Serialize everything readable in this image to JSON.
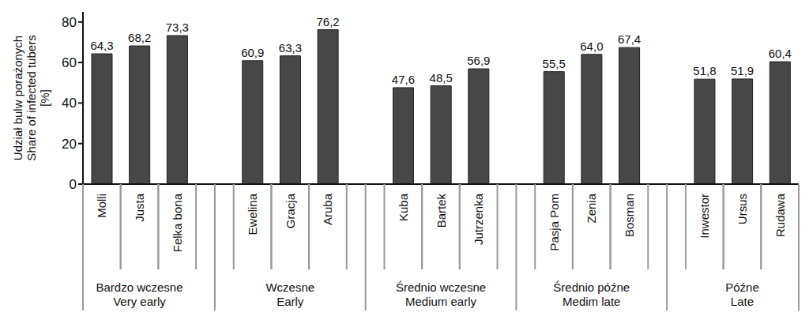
{
  "chart_data": {
    "type": "bar",
    "y_label": [
      "Udział bulw porażonych",
      "Share of infected tubers",
      "[%]"
    ],
    "categories": [
      "Molli",
      "Justa",
      "Felka bona",
      null,
      "Ewelina",
      "Gracja",
      "Aruba",
      null,
      "Kuba",
      "Bartek",
      "Jutrzenka",
      null,
      "Pasja Pom",
      "Zenia",
      "Bosman",
      null,
      "Inwestor",
      "Ursus",
      "Rudawa"
    ],
    "values": [
      64.3,
      68.2,
      73.3,
      null,
      60.9,
      63.3,
      76.2,
      null,
      47.6,
      48.5,
      56.9,
      null,
      55.5,
      64.0,
      67.4,
      null,
      51.8,
      51.9,
      60.4
    ],
    "value_labels": [
      "64,3",
      "68,2",
      "73,3",
      null,
      "60,9",
      "63,3",
      "76,2",
      null,
      "47,6",
      "48,5",
      "56,9",
      null,
      "55,5",
      "64,0",
      "67,4",
      null,
      "51,8",
      "51,9",
      "60,4"
    ],
    "group_labels": [
      [
        "Bardzo wczesne",
        "Very early"
      ],
      [
        "Wczesne",
        "Early"
      ],
      [
        "Średnio wczesne",
        "Medium early"
      ],
      [
        "Średnio późne",
        "Medim late"
      ],
      [
        "Późne",
        "Late"
      ]
    ],
    "color": "#474747",
    "ylim": [
      0,
      85
    ],
    "yticks": [
      0,
      20,
      40,
      60,
      80
    ],
    "grid": false,
    "data_labels": true
  }
}
